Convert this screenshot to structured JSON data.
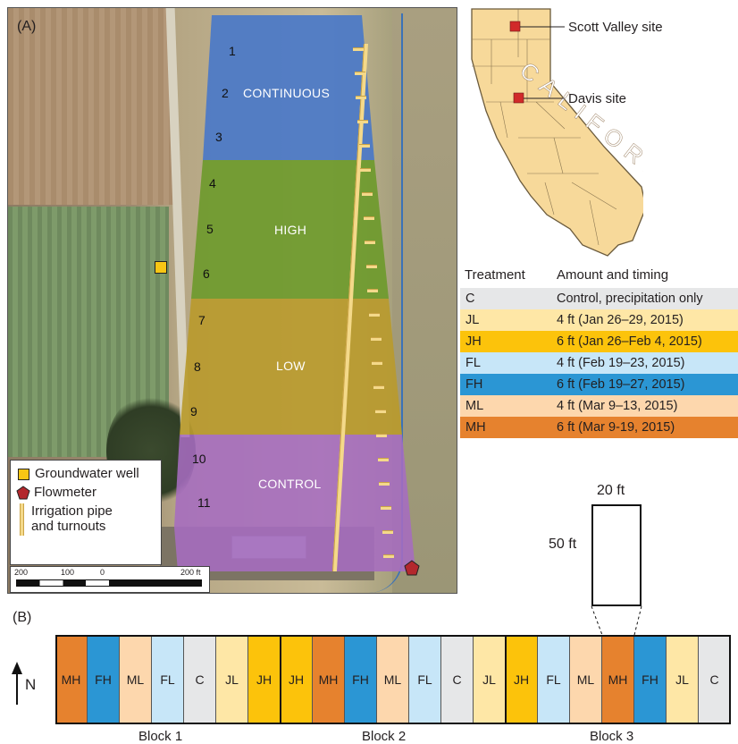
{
  "panel_a": {
    "label": "(A)",
    "row_numbers": [
      "1",
      "2",
      "3",
      "4",
      "5",
      "6",
      "7",
      "8",
      "9",
      "10",
      "11"
    ],
    "zones": [
      {
        "name": "CONTINUOUS",
        "color": "#4a78c8"
      },
      {
        "name": "HIGH",
        "color": "#6e9a2c"
      },
      {
        "name": "LOW",
        "color": "#b99a2e"
      },
      {
        "name": "CONTROL",
        "color": "#a66cc0"
      }
    ],
    "legend": {
      "well": "Groundwater well",
      "flowmeter": "Flowmeter",
      "pipe_line1": "Irrigation pipe",
      "pipe_line2": "and turnouts"
    },
    "scale_labels": [
      "200",
      "100",
      "0",
      "200 ft"
    ]
  },
  "map": {
    "state_label": "CALIFORNIA",
    "sites": [
      "Scott Valley site",
      "Davis site"
    ]
  },
  "treatments": {
    "header": [
      "Treatment",
      "Amount and timing"
    ],
    "rows": [
      {
        "code": "C",
        "desc": "Control, precipitation only",
        "color": "#e6e7e8"
      },
      {
        "code": "JL",
        "desc": "4 ft (Jan 26–29, 2015)",
        "color": "#fee7a6"
      },
      {
        "code": "JH",
        "desc": "6 ft (Jan 26–Feb 4, 2015)",
        "color": "#fcc30b"
      },
      {
        "code": "FL",
        "desc": "4 ft (Feb 19–23, 2015)",
        "color": "#c7e6f8"
      },
      {
        "code": "FH",
        "desc": "6 ft (Feb 19–27, 2015)",
        "color": "#2b96d4"
      },
      {
        "code": "ML",
        "desc": "4 ft (Mar 9–13, 2015)",
        "color": "#fdd7ad"
      },
      {
        "code": "MH",
        "desc": "6 ft (Mar 9-19, 2015)",
        "color": "#e6822e"
      }
    ]
  },
  "plot_dims": {
    "width": "20 ft",
    "length": "50 ft"
  },
  "panel_b": {
    "label": "(B)",
    "north": "N",
    "plots": [
      "MH",
      "FH",
      "ML",
      "FL",
      "C",
      "JL",
      "JH",
      "JH",
      "MH",
      "FH",
      "ML",
      "FL",
      "C",
      "JL",
      "JH",
      "FL",
      "ML",
      "MH",
      "FH",
      "JL",
      "C"
    ],
    "blocks": [
      "Block 1",
      "Block 2",
      "Block 3"
    ]
  }
}
